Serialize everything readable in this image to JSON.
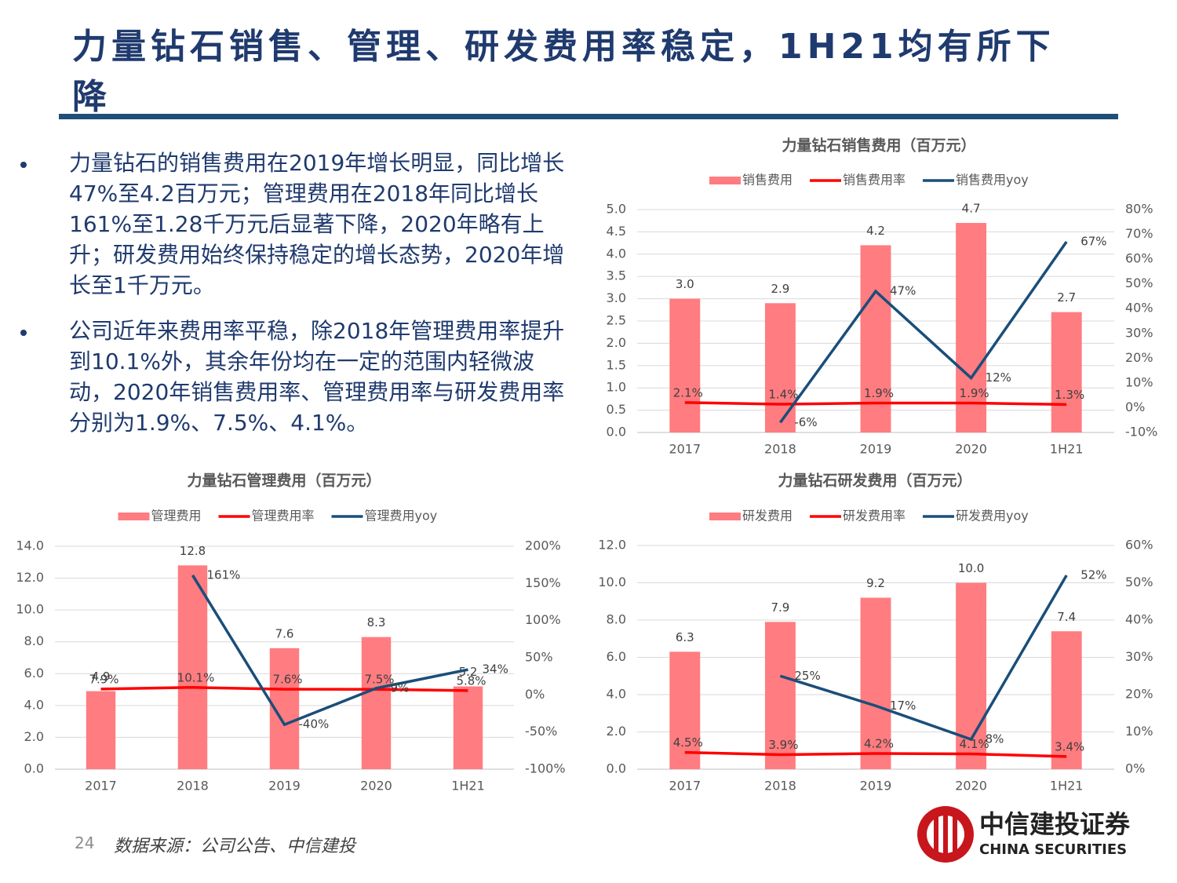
{
  "title": "力量钻石销售、管理、研发费用率稳定，1H21均有所下降",
  "bullets": [
    "力量钻石的销售费用在2019年增长明显，同比增长47%至4.2百万元；管理费用在2018年同比增长161%至1.28千万元后显著下降，2020年略有上升；研发费用始终保持稳定的增长态势，2020年增长至1千万元。",
    "公司近年来费用率平稳，除2018年管理费用率提升到10.1%外，其余年份均在一定的范围内轻微波动，2020年销售费用率、管理费用率与研发费用率分别为1.9%、7.5%、4.1%。"
  ],
  "page_number": 24,
  "source": "数据来源：公司公告、中信建投",
  "logo": {
    "name_cn": "中信建投证券",
    "name_en": "CHINA SECURITIES"
  },
  "chart_data": [
    {
      "type": "combo",
      "title": "力量钻石销售费用（百万元）",
      "grid": true,
      "categories": [
        "2017",
        "2018",
        "2019",
        "2020",
        "1H21"
      ],
      "series": [
        {
          "name": "销售费用",
          "kind": "bar",
          "color": "#ff7c80",
          "values": [
            3.0,
            2.9,
            4.2,
            4.7,
            2.7
          ],
          "value_labels": [
            "3.0",
            "2.9",
            "4.2",
            "4.7",
            "2.7"
          ]
        },
        {
          "name": "销售费用率",
          "kind": "line",
          "axis": "y2",
          "color": "#ff0000",
          "values": [
            2.1,
            1.4,
            1.9,
            1.9,
            1.3
          ],
          "value_labels": [
            "2.1%",
            "1.4%",
            "1.9%",
            "1.9%",
            "1.3%"
          ]
        },
        {
          "name": "销售费用yoy",
          "kind": "line",
          "axis": "y2",
          "color": "#1a4e7a",
          "values": [
            null,
            -6,
            47,
            12,
            67
          ],
          "value_labels": [
            null,
            "-6%",
            "47%",
            "12%",
            "67%"
          ]
        }
      ],
      "ylim": [
        0,
        5
      ],
      "yticks": [
        {
          "value": 0,
          "label": "0.0"
        },
        {
          "value": 0.5,
          "label": "0.5"
        },
        {
          "value": 1,
          "label": "1.0"
        },
        {
          "value": 1.5,
          "label": "1.5"
        },
        {
          "value": 2,
          "label": "2.0"
        },
        {
          "value": 2.5,
          "label": "2.5"
        },
        {
          "value": 3,
          "label": "3.0"
        },
        {
          "value": 3.5,
          "label": "3.5"
        },
        {
          "value": 4,
          "label": "4.0"
        },
        {
          "value": 4.5,
          "label": "4.5"
        },
        {
          "value": 5,
          "label": "5.0"
        }
      ],
      "y2lim": [
        -10,
        80
      ],
      "y2ticks": [
        {
          "value": -10,
          "label": "-10%"
        },
        {
          "value": 0,
          "label": "0%"
        },
        {
          "value": 10,
          "label": "10%"
        },
        {
          "value": 20,
          "label": "20%"
        },
        {
          "value": 30,
          "label": "30%"
        },
        {
          "value": 40,
          "label": "40%"
        },
        {
          "value": 50,
          "label": "50%"
        },
        {
          "value": 60,
          "label": "60%"
        },
        {
          "value": 70,
          "label": "70%"
        },
        {
          "value": 80,
          "label": "80%"
        }
      ]
    },
    {
      "type": "combo",
      "title": "力量钻石管理费用（百万元）",
      "grid": true,
      "categories": [
        "2017",
        "2018",
        "2019",
        "2020",
        "1H21"
      ],
      "series": [
        {
          "name": "管理费用",
          "kind": "bar",
          "color": "#ff7c80",
          "values": [
            4.9,
            12.8,
            7.6,
            8.3,
            5.2
          ]
        },
        {
          "name": "管理费用率",
          "kind": "line",
          "axis": "y2",
          "color": "#ff0000",
          "values": [
            7.9,
            10.1,
            7.6,
            7.5,
            5.8
          ],
          "value_labels": [
            "7.9%",
            "10.1%",
            "7.6%",
            "7.5%",
            "5.8%"
          ]
        },
        {
          "name": "管理费用yoy",
          "kind": "line",
          "axis": "y2",
          "color": "#1a4e7a",
          "values": [
            null,
            161,
            -40,
            9,
            34
          ],
          "value_labels": [
            null,
            "161%",
            "-40%",
            "9%",
            "34%"
          ]
        }
      ],
      "ylim": [
        0,
        14
      ],
      "yticks": [
        {
          "value": 0,
          "label": "0.0"
        },
        {
          "value": 2,
          "label": "2.0"
        },
        {
          "value": 4,
          "label": "4.0"
        },
        {
          "value": 6,
          "label": "6.0"
        },
        {
          "value": 8,
          "label": "8.0"
        },
        {
          "value": 10,
          "label": "10.0"
        },
        {
          "value": 12,
          "label": "12.0"
        },
        {
          "value": 14,
          "label": "14.0"
        }
      ],
      "y2lim": [
        -100,
        200
      ],
      "y2ticks": [
        {
          "value": -100,
          "label": "-100%"
        },
        {
          "value": -50,
          "label": "-50%"
        },
        {
          "value": 0,
          "label": "0%"
        },
        {
          "value": 50,
          "label": "50%"
        },
        {
          "value": 100,
          "label": "100%"
        },
        {
          "value": 150,
          "label": "150%"
        },
        {
          "value": 200,
          "label": "200%"
        }
      ]
    },
    {
      "type": "combo",
      "title": "力量钻石研发费用（百万元）",
      "grid": true,
      "categories": [
        "2017",
        "2018",
        "2019",
        "2020",
        "1H21"
      ],
      "series": [
        {
          "name": "研发费用",
          "kind": "bar",
          "color": "#ff7c80",
          "values": [
            6.3,
            7.9,
            9.2,
            10.0,
            7.4
          ],
          "value_labels": [
            "6.3",
            "7.9",
            "9.2",
            "10.0",
            "7.4"
          ]
        },
        {
          "name": "研发费用率",
          "kind": "line",
          "axis": "y2",
          "color": "#ff0000",
          "values": [
            4.5,
            3.9,
            4.2,
            4.1,
            3.4
          ],
          "value_labels": [
            "4.5%",
            "3.9%",
            "4.2%",
            "4.1%",
            "3.4%"
          ]
        },
        {
          "name": "研发费用yoy",
          "kind": "line",
          "axis": "y2",
          "color": "#1a4e7a",
          "values": [
            null,
            25,
            17,
            8,
            52
          ],
          "value_labels": [
            null,
            "25%",
            "17%",
            "8%",
            "52%"
          ]
        }
      ],
      "ylim": [
        0,
        12
      ],
      "yticks": [
        {
          "value": 0,
          "label": "0.0"
        },
        {
          "value": 2,
          "label": "2.0"
        },
        {
          "value": 4,
          "label": "4.0"
        },
        {
          "value": 6,
          "label": "6.0"
        },
        {
          "value": 8,
          "label": "8.0"
        },
        {
          "value": 10,
          "label": "10.0"
        },
        {
          "value": 12,
          "label": "12.0"
        }
      ],
      "y2lim": [
        0,
        60
      ],
      "y2ticks": [
        {
          "value": 0,
          "label": "0%"
        },
        {
          "value": 10,
          "label": "10%"
        },
        {
          "value": 20,
          "label": "20%"
        },
        {
          "value": 30,
          "label": "30%"
        },
        {
          "value": 40,
          "label": "40%"
        },
        {
          "value": 50,
          "label": "50%"
        },
        {
          "value": 60,
          "label": "60%"
        }
      ]
    }
  ]
}
